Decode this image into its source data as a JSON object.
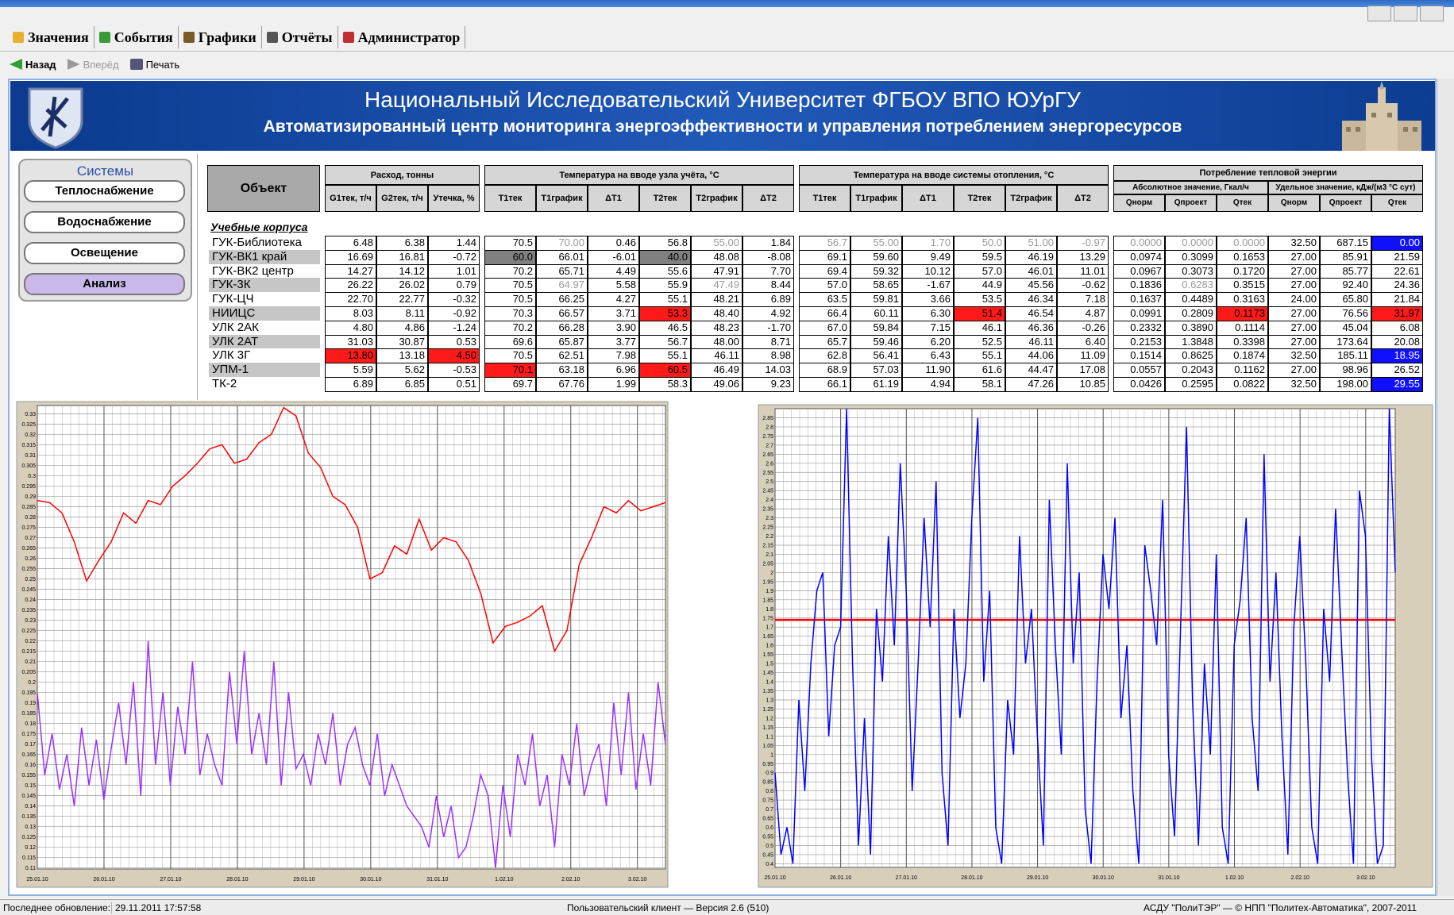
{
  "menu": [
    "Значения",
    "События",
    "Графики",
    "Отчёты",
    "Администратор"
  ],
  "toolbar": [
    "Назад",
    "Вперёд",
    "Печать"
  ],
  "header": {
    "title": "Национальный Исследовательский Университет ФГБОУ ВПО ЮУрГУ",
    "subtitle": "Автоматизированный центр мониторинга энергоэффективности и управления потреблением энергоресурсов"
  },
  "sidebar": {
    "title": "Системы",
    "buttons": [
      "Теплоснабжение",
      "Водоснабжение",
      "Освещение",
      "Анализ"
    ]
  },
  "table": {
    "object_header": "Объект",
    "groups": [
      "Расход, тонны",
      "Температура на вводе узла учёта, °C",
      "Температура на вводе системы отопления, °C",
      "Потребление тепловой энергии"
    ],
    "subgroups": [
      "Абсолютное значение, Гкал/ч",
      "Удельное значение, кДж/(м3 °С сут)"
    ],
    "columns": [
      "G1тек, т/ч",
      "G2тек, т/ч",
      "Утечка, %",
      "T1тек",
      "T1график",
      "ΔT1",
      "T2тек",
      "T2график",
      "ΔT2",
      "T1тек",
      "T1график",
      "ΔT1",
      "T2тек",
      "T2график",
      "ΔT2",
      "Qнорм",
      "Qпроект",
      "Qтек",
      "Qнорм",
      "Qпроект",
      "Qтек"
    ],
    "section": "Учебные корпуса",
    "rows": [
      {
        "name": "ГУК-Библиотека",
        "cells": [
          "6.48",
          "6.38",
          "1.44",
          "70.5",
          "70.00",
          "0.46",
          "56.8",
          "55.00",
          "1.84",
          "56.7",
          "55.00",
          "1.70",
          "50.0",
          "51.00",
          "-0.97",
          "0.0000",
          "0.0000",
          "0.0000",
          "32.50",
          "687.15",
          "0.00"
        ]
      },
      {
        "name": "ГУК-ВК1 край",
        "cells": [
          "16.69",
          "16.81",
          "-0.72",
          "60.0",
          "66.01",
          "-6.01",
          "40.0",
          "48.08",
          "-8.08",
          "69.1",
          "59.60",
          "9.49",
          "59.5",
          "46.19",
          "13.29",
          "0.0974",
          "0.3099",
          "0.1653",
          "27.00",
          "85.91",
          "21.59"
        ]
      },
      {
        "name": "ГУК-ВК2 центр",
        "cells": [
          "14.27",
          "14.12",
          "1.01",
          "70.2",
          "65.71",
          "4.49",
          "55.6",
          "47.91",
          "7.70",
          "69.4",
          "59.32",
          "10.12",
          "57.0",
          "46.01",
          "11.01",
          "0.0967",
          "0.3073",
          "0.1720",
          "27.00",
          "85.77",
          "22.61"
        ]
      },
      {
        "name": "ГУК-3К",
        "cells": [
          "26.22",
          "26.02",
          "0.79",
          "70.5",
          "64.97",
          "5.58",
          "55.9",
          "47.49",
          "8.44",
          "57.0",
          "58.65",
          "-1.67",
          "44.9",
          "45.56",
          "-0.62",
          "0.1836",
          "0.6283",
          "0.3515",
          "27.00",
          "92.40",
          "24.36"
        ]
      },
      {
        "name": "ГУК-ЦЧ",
        "cells": [
          "22.70",
          "22.77",
          "-0.32",
          "70.5",
          "66.25",
          "4.27",
          "55.1",
          "48.21",
          "6.89",
          "63.5",
          "59.81",
          "3.66",
          "53.5",
          "46.34",
          "7.18",
          "0.1637",
          "0.4489",
          "0.3163",
          "24.00",
          "65.80",
          "21.84"
        ]
      },
      {
        "name": "НИИЦС",
        "cells": [
          "8.03",
          "8.11",
          "-0.92",
          "70.3",
          "66.57",
          "3.71",
          "53.3",
          "48.40",
          "4.92",
          "66.4",
          "60.11",
          "6.30",
          "51.4",
          "46.54",
          "4.87",
          "0.0991",
          "0.2809",
          "0.1173",
          "27.00",
          "76.56",
          "31.97"
        ]
      },
      {
        "name": "УЛК 2АК",
        "cells": [
          "4.80",
          "4.86",
          "-1.24",
          "70.2",
          "66.28",
          "3.90",
          "46.5",
          "48.23",
          "-1.70",
          "67.0",
          "59.84",
          "7.15",
          "46.1",
          "46.36",
          "-0.26",
          "0.2332",
          "0.3890",
          "0.1114",
          "27.00",
          "45.04",
          "6.08"
        ]
      },
      {
        "name": "УЛК 2АТ",
        "cells": [
          "31.03",
          "30.87",
          "0.53",
          "69.6",
          "65.87",
          "3.77",
          "56.7",
          "48.00",
          "8.71",
          "65.7",
          "59.46",
          "6.20",
          "52.5",
          "46.11",
          "6.40",
          "0.2153",
          "1.3848",
          "0.3398",
          "27.00",
          "173.64",
          "20.08"
        ]
      },
      {
        "name": "УЛК 3Г",
        "cells": [
          "13.80",
          "13.18",
          "4.50",
          "70.5",
          "62.51",
          "7.98",
          "55.1",
          "46.11",
          "8.98",
          "62.8",
          "56.41",
          "6.43",
          "55.1",
          "44.06",
          "11.09",
          "0.1514",
          "0.8625",
          "0.1874",
          "32.50",
          "185.11",
          "18.95"
        ]
      },
      {
        "name": "УПМ-1",
        "cells": [
          "5.59",
          "5.62",
          "-0.53",
          "70.1",
          "63.18",
          "6.96",
          "60.5",
          "46.49",
          "14.03",
          "68.9",
          "57.03",
          "11.90",
          "61.6",
          "44.47",
          "17.08",
          "0.0557",
          "0.2043",
          "0.1162",
          "27.00",
          "98.96",
          "26.52"
        ]
      },
      {
        "name": "ТК-2",
        "cells": [
          "6.89",
          "6.85",
          "0.51",
          "69.7",
          "67.76",
          "1.99",
          "58.3",
          "49.06",
          "9.23",
          "66.1",
          "61.19",
          "4.94",
          "58.1",
          "47.26",
          "10.85",
          "0.0426",
          "0.2595",
          "0.0822",
          "32.50",
          "198.00",
          "29.55"
        ]
      }
    ],
    "highlights": {
      "red": [
        [
          5,
          6
        ],
        [
          5,
          12
        ],
        [
          5,
          17
        ],
        [
          5,
          20
        ],
        [
          8,
          0
        ],
        [
          8,
          2
        ],
        [
          9,
          3
        ],
        [
          9,
          6
        ]
      ],
      "gray": [
        [
          1,
          3
        ],
        [
          1,
          6
        ]
      ],
      "blue": [
        [
          0,
          20
        ],
        [
          8,
          20
        ],
        [
          10,
          20
        ]
      ],
      "faded": [
        [
          0,
          4
        ],
        [
          0,
          7
        ],
        [
          0,
          9
        ],
        [
          0,
          10
        ],
        [
          0,
          11
        ],
        [
          0,
          12
        ],
        [
          0,
          13
        ],
        [
          0,
          14
        ],
        [
          0,
          15
        ],
        [
          0,
          16
        ],
        [
          0,
          17
        ],
        [
          3,
          4
        ],
        [
          3,
          7
        ],
        [
          3,
          16
        ]
      ]
    }
  },
  "chart_data": [
    {
      "type": "line",
      "xlim": [
        0,
        9.42
      ],
      "ylim": [
        0.1095,
        0.334
      ],
      "grid": true,
      "xticks": [
        {
          "value": 0,
          "label": "25.01.10"
        },
        {
          "value": 1,
          "label": "26.01.10"
        },
        {
          "value": 2,
          "label": "27.01.10"
        },
        {
          "value": 3,
          "label": "28.01.10"
        },
        {
          "value": 4,
          "label": "29.01.10"
        },
        {
          "value": 5,
          "label": "30.01.10"
        },
        {
          "value": 6,
          "label": "31.01.10"
        },
        {
          "value": 7,
          "label": "1.02.10"
        },
        {
          "value": 8,
          "label": "2.02.10"
        },
        {
          "value": 9,
          "label": "3.02.10"
        }
      ],
      "yticks": [
        0.11,
        0.115,
        0.12,
        0.125,
        0.13,
        0.135,
        0.14,
        0.145,
        0.15,
        0.155,
        0.16,
        0.165,
        0.17,
        0.175,
        0.18,
        0.185,
        0.19,
        0.195,
        0.2,
        0.205,
        0.21,
        0.215,
        0.22,
        0.225,
        0.23,
        0.235,
        0.24,
        0.245,
        0.25,
        0.255,
        0.26,
        0.265,
        0.27,
        0.275,
        0.28,
        0.285,
        0.29,
        0.295,
        0.3,
        0.305,
        0.31,
        0.315,
        0.32,
        0.325,
        0.33
      ],
      "series": [
        {
          "color": "#ff0000",
          "values": [
            0.288,
            0.287,
            0.282,
            0.268,
            0.249,
            0.259,
            0.268,
            0.282,
            0.277,
            0.288,
            0.286,
            0.295,
            0.3,
            0.306,
            0.313,
            0.315,
            0.306,
            0.308,
            0.316,
            0.32,
            0.333,
            0.329,
            0.311,
            0.304,
            0.29,
            0.286,
            0.275,
            0.25,
            0.253,
            0.266,
            0.262,
            0.279,
            0.264,
            0.27,
            0.268,
            0.259,
            0.243,
            0.219,
            0.227,
            0.229,
            0.232,
            0.237,
            0.215,
            0.225,
            0.257,
            0.27,
            0.285,
            0.282,
            0.288,
            0.283,
            0.285,
            0.287
          ]
        },
        {
          "color": "#9b30ff",
          "values": [
            0.195,
            0.155,
            0.175,
            0.148,
            0.165,
            0.14,
            0.178,
            0.15,
            0.172,
            0.143,
            0.168,
            0.19,
            0.16,
            0.2,
            0.145,
            0.22,
            0.16,
            0.195,
            0.15,
            0.188,
            0.165,
            0.21,
            0.155,
            0.175,
            0.16,
            0.15,
            0.205,
            0.17,
            0.215,
            0.165,
            0.185,
            0.16,
            0.21,
            0.15,
            0.195,
            0.158,
            0.165,
            0.15,
            0.175,
            0.16,
            0.185,
            0.15,
            0.17,
            0.178,
            0.16,
            0.15,
            0.175,
            0.145,
            0.16,
            0.15,
            0.14,
            0.135,
            0.13,
            0.12,
            0.145,
            0.125,
            0.14,
            0.115,
            0.12,
            0.135,
            0.155,
            0.145,
            0.11,
            0.15,
            0.125,
            0.165,
            0.15,
            0.175,
            0.14,
            0.155,
            0.12,
            0.165,
            0.15,
            0.18,
            0.145,
            0.16,
            0.17,
            0.14,
            0.19,
            0.155,
            0.195,
            0.148,
            0.175,
            0.15,
            0.2,
            0.17
          ]
        }
      ]
    },
    {
      "type": "line",
      "xlim": [
        0,
        9.45
      ],
      "ylim": [
        0.38,
        2.9
      ],
      "grid": true,
      "xticks": [
        {
          "value": 0,
          "label": "25.01.10"
        },
        {
          "value": 1,
          "label": "26.01.10"
        },
        {
          "value": 2,
          "label": "27.01.10"
        },
        {
          "value": 3,
          "label": "28.01.10"
        },
        {
          "value": 4,
          "label": "29.01.10"
        },
        {
          "value": 5,
          "label": "30.01.10"
        },
        {
          "value": 6,
          "label": "31.01.10"
        },
        {
          "value": 7,
          "label": "1.02.10"
        },
        {
          "value": 8,
          "label": "2.02.10"
        },
        {
          "value": 9,
          "label": "3.02.10"
        }
      ],
      "yticks": [
        0.4,
        0.45,
        0.5,
        0.55,
        0.6,
        0.65,
        0.7,
        0.75,
        0.8,
        0.85,
        0.9,
        0.95,
        1,
        1.05,
        1.1,
        1.15,
        1.2,
        1.25,
        1.3,
        1.35,
        1.4,
        1.45,
        1.5,
        1.55,
        1.6,
        1.65,
        1.7,
        1.75,
        1.8,
        1.85,
        1.9,
        1.95,
        2,
        2.05,
        2.1,
        2.15,
        2.2,
        2.25,
        2.3,
        2.35,
        2.4,
        2.45,
        2.5,
        2.55,
        2.6,
        2.65,
        2.7,
        2.75,
        2.8,
        2.85
      ],
      "hline": {
        "value": 1.74,
        "color": "#ff0000"
      },
      "series": [
        {
          "color": "#0000ff",
          "values": [
            0.9,
            0.45,
            0.6,
            0.4,
            1.3,
            0.8,
            1.5,
            1.9,
            2.0,
            1.1,
            1.6,
            1.7,
            2.9,
            1.5,
            0.5,
            1.2,
            0.45,
            1.8,
            1.4,
            2.2,
            1.6,
            2.6,
            1.9,
            0.8,
            1.5,
            2.3,
            1.7,
            2.5,
            0.9,
            0.5,
            1.8,
            1.2,
            1.5,
            2.3,
            2.85,
            1.4,
            1.9,
            0.6,
            0.4,
            1.3,
            1.0,
            2.2,
            1.5,
            1.8,
            1.1,
            0.5,
            2.4,
            1.6,
            1.0,
            2.6,
            1.5,
            2.0,
            0.7,
            0.4,
            1.4,
            2.1,
            1.8,
            2.3,
            1.2,
            1.6,
            0.8,
            0.4,
            2.15,
            1.9,
            1.6,
            2.4,
            1.0,
            0.55,
            1.7,
            2.8,
            1.3,
            0.5,
            1.5,
            1.0,
            2.1,
            0.6,
            0.4,
            1.6,
            1.85,
            2.3,
            1.2,
            0.8,
            2.65,
            1.4,
            2.0,
            1.1,
            0.45,
            1.7,
            2.2,
            1.5,
            0.6,
            0.4,
            1.8,
            1.4,
            2.35,
            1.6,
            0.9,
            0.4,
            2.45,
            2.2,
            1.0,
            0.4,
            0.5,
            2.9,
            2.0
          ]
        }
      ]
    }
  ],
  "status": {
    "label": "Последнее обновление:",
    "time": "29.11.2011 17:57:58",
    "version": "Пользовательский клиент — Версия 2.6 (510)",
    "copyright": "АСДУ \"ПолиТЭР\" — © НПП \"Политех-Автоматика\", 2007-2011"
  }
}
